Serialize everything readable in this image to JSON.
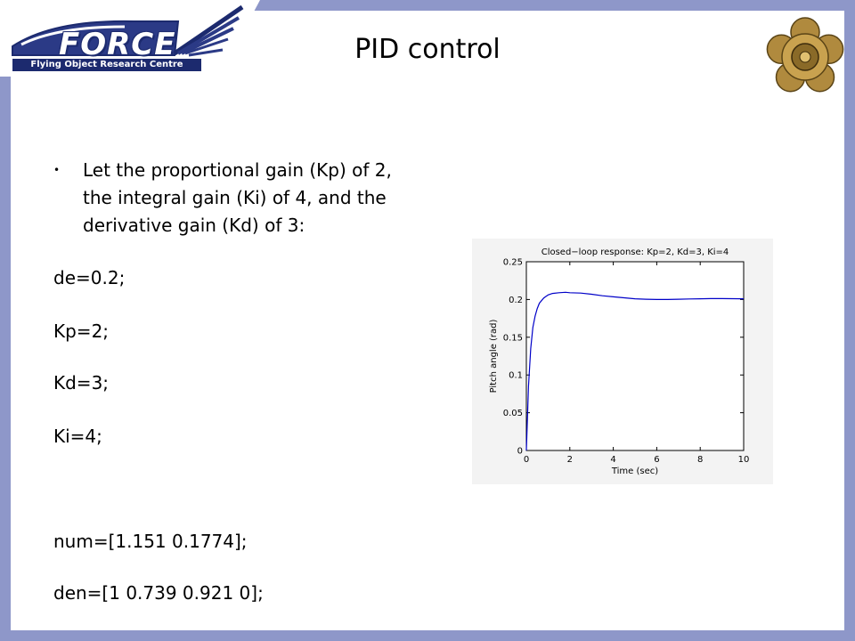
{
  "header": {
    "logo_word": "FORCE",
    "logo_sub": "Flying Object Research Centre",
    "title": "PID control"
  },
  "bullet": {
    "text": "Let the proportional gain (Kp) of 2, the integral gain (Ki) of 4, and the derivative gain (Kd) of 3:"
  },
  "code": [
    "de=0.2;",
    "Kp=2;",
    "Kd=3;",
    "Ki=4;",
    "num=[1.151 0.1774];",
    "den=[1 0.739 0.921 0];"
  ],
  "colors": {
    "frame": "#8e97c9",
    "line": "#0000c8",
    "logo_navy": "#1c2a6e"
  },
  "chart_data": {
    "type": "line",
    "title": "Closed−loop response: Kp=2, Kd=3, Ki=4",
    "xlabel": "Time (sec)",
    "ylabel": "Pitch angle (rad)",
    "xlim": [
      0,
      10
    ],
    "ylim": [
      0,
      0.25
    ],
    "x_ticks": [
      0,
      2,
      4,
      6,
      8,
      10
    ],
    "y_ticks": [
      0,
      0.05,
      0.1,
      0.15,
      0.2,
      0.25
    ],
    "x_tick_labels": [
      "0",
      "2",
      "4",
      "6",
      "8",
      "10"
    ],
    "y_tick_labels": [
      "0",
      "0.05",
      "0.1",
      "0.15",
      "0.2",
      "0.25"
    ],
    "grid": false,
    "series": [
      {
        "x": [
          0,
          0.1,
          0.2,
          0.3,
          0.4,
          0.5,
          0.6,
          0.8,
          1.0,
          1.2,
          1.5,
          1.8,
          2.0,
          2.5,
          3.0,
          3.5,
          4.0,
          4.5,
          5.0,
          5.5,
          6.0,
          6.5,
          7.0,
          7.5,
          8.0,
          8.5,
          9.0,
          9.5,
          10.0
        ],
        "y": [
          0,
          0.085,
          0.135,
          0.163,
          0.178,
          0.188,
          0.195,
          0.202,
          0.206,
          0.208,
          0.209,
          0.2095,
          0.209,
          0.2085,
          0.207,
          0.205,
          0.2035,
          0.2022,
          0.201,
          0.2003,
          0.2,
          0.2,
          0.2003,
          0.2007,
          0.201,
          0.2012,
          0.2012,
          0.2011,
          0.201
        ]
      }
    ]
  }
}
